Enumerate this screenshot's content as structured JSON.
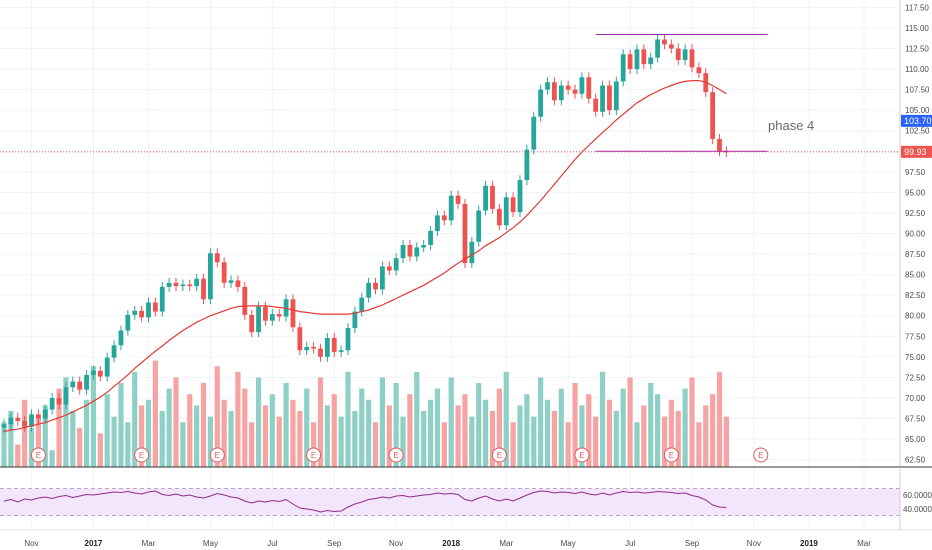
{
  "chart_data": {
    "type": "candlestick",
    "price_axis": {
      "min": 61.6,
      "max": 118.4,
      "ticks": [
        "117.50",
        "115.00",
        "112.50",
        "110.00",
        "107.50",
        "105.00",
        "102.50",
        "100.00",
        "97.50",
        "95.00",
        "92.50",
        "90.00",
        "87.50",
        "85.00",
        "82.50",
        "80.00",
        "77.50",
        "75.00",
        "72.50",
        "70.00",
        "67.50",
        "65.00",
        "62.50"
      ]
    },
    "time_axis": {
      "labels": [
        {
          "text": "Nov",
          "week": 4,
          "bold": false
        },
        {
          "text": "2017",
          "week": 13,
          "bold": true
        },
        {
          "text": "Mar",
          "week": 21,
          "bold": false
        },
        {
          "text": "May",
          "week": 30,
          "bold": false
        },
        {
          "text": "Jul",
          "week": 39,
          "bold": false
        },
        {
          "text": "Sep",
          "week": 48,
          "bold": false
        },
        {
          "text": "Nov",
          "week": 57,
          "bold": false
        },
        {
          "text": "2018",
          "week": 65,
          "bold": true
        },
        {
          "text": "Mar",
          "week": 73,
          "bold": false
        },
        {
          "text": "May",
          "week": 82,
          "bold": false
        },
        {
          "text": "Jul",
          "week": 91,
          "bold": false
        },
        {
          "text": "Sep",
          "week": 100,
          "bold": false
        },
        {
          "text": "Nov",
          "week": 109,
          "bold": false
        },
        {
          "text": "2019",
          "week": 117,
          "bold": true
        },
        {
          "text": "Mar",
          "week": 125,
          "bold": false
        }
      ]
    },
    "candles_close": [
      66.8,
      67.6,
      67.2,
      66.5,
      68.0,
      67.5,
      68.6,
      70.0,
      69.2,
      71.3,
      72.0,
      71.0,
      72.8,
      73.3,
      72.6,
      74.9,
      76.4,
      78.2,
      80.1,
      80.6,
      79.8,
      81.6,
      80.5,
      83.5,
      84.0,
      83.6,
      83.8,
      83.6,
      84.5,
      82.0,
      87.6,
      86.5,
      84.0,
      84.3,
      83.5,
      80.1,
      78.0,
      81.1,
      79.4,
      80.2,
      79.9,
      82.0,
      78.6,
      75.8,
      76.2,
      76.0,
      75.0,
      77.3,
      75.6,
      75.8,
      78.5,
      80.5,
      82.2,
      84.0,
      83.2,
      86.0,
      85.5,
      87.0,
      88.6,
      87.2,
      88.3,
      88.6,
      90.3,
      92.2,
      91.6,
      94.6,
      93.6,
      86.4,
      89.0,
      92.8,
      95.8,
      93.0,
      91.0,
      94.4,
      92.6,
      96.5,
      100.2,
      104.2,
      107.5,
      108.4,
      106.2,
      108.0,
      107.5,
      107.0,
      109.0,
      106.4,
      104.8,
      108.0,
      105.0,
      108.5,
      111.8,
      110.0,
      112.4,
      110.6,
      111.4,
      113.6,
      113.0,
      112.5,
      111.1,
      112.4,
      110.2,
      109.5,
      107.2,
      101.5,
      100.0,
      99.9
    ],
    "candles_open": [
      66.4,
      66.8,
      67.6,
      67.2,
      66.5,
      68.0,
      67.5,
      68.6,
      70.0,
      69.2,
      71.3,
      72.0,
      71.0,
      72.8,
      73.3,
      72.6,
      74.9,
      76.4,
      78.2,
      80.1,
      80.6,
      79.8,
      81.6,
      80.5,
      83.5,
      84.0,
      83.6,
      83.8,
      83.6,
      84.5,
      82.0,
      87.6,
      86.5,
      84.0,
      84.3,
      83.5,
      80.1,
      78.0,
      81.1,
      79.4,
      80.2,
      79.9,
      82.0,
      78.6,
      75.8,
      76.2,
      76.0,
      75.0,
      77.3,
      75.6,
      75.8,
      78.5,
      80.5,
      82.2,
      84.0,
      83.2,
      86.0,
      85.5,
      87.0,
      88.6,
      87.2,
      88.3,
      88.6,
      90.3,
      92.2,
      91.6,
      94.6,
      93.6,
      86.4,
      89.0,
      92.8,
      95.8,
      93.0,
      91.0,
      94.4,
      92.6,
      96.5,
      100.2,
      104.2,
      107.5,
      108.4,
      106.2,
      108.0,
      107.5,
      107.0,
      109.0,
      106.4,
      104.8,
      108.0,
      105.0,
      108.5,
      111.8,
      110.0,
      112.4,
      110.6,
      111.4,
      113.6,
      113.0,
      112.5,
      111.1,
      112.4,
      110.2,
      109.5,
      107.2,
      101.5,
      100.0
    ],
    "ma_series": {
      "name": "MA",
      "values": [
        65.9,
        66.1,
        66.2,
        66.4,
        66.6,
        66.8,
        67.0,
        67.3,
        67.6,
        67.9,
        68.3,
        68.7,
        69.1,
        69.6,
        70.1,
        70.7,
        71.4,
        72.1,
        72.8,
        73.6,
        74.3,
        75.0,
        75.7,
        76.3,
        77.0,
        77.6,
        78.2,
        78.7,
        79.2,
        79.6,
        80.0,
        80.3,
        80.6,
        80.9,
        81.1,
        81.2,
        81.2,
        81.2,
        81.2,
        81.1,
        81.0,
        80.9,
        80.7,
        80.5,
        80.4,
        80.3,
        80.2,
        80.2,
        80.2,
        80.2,
        80.2,
        80.3,
        80.5,
        80.7,
        81.0,
        81.3,
        81.7,
        82.1,
        82.5,
        82.9,
        83.3,
        83.7,
        84.2,
        84.7,
        85.2,
        85.8,
        86.4,
        86.9,
        87.4,
        87.9,
        88.5,
        89.0,
        89.5,
        90.1,
        90.7,
        91.4,
        92.2,
        93.1,
        94.0,
        95.0,
        96.0,
        97.0,
        98.0,
        99.0,
        99.9,
        100.7,
        101.5,
        102.3,
        103.0,
        103.8,
        104.5,
        105.2,
        105.9,
        106.4,
        106.9,
        107.3,
        107.7,
        108.0,
        108.3,
        108.5,
        108.6,
        108.6,
        108.4,
        108.0,
        107.5,
        107.0
      ]
    },
    "volume": [
      70,
      72,
      66,
      74,
      69,
      71,
      73,
      65,
      76,
      78,
      72,
      69,
      74,
      80,
      68,
      75,
      71,
      77,
      70,
      79,
      73,
      74,
      81,
      72,
      76,
      78,
      70,
      75,
      73,
      77,
      71,
      80,
      74,
      72,
      79,
      76,
      70,
      78,
      73,
      75,
      71,
      77,
      74,
      72,
      76,
      70,
      78,
      73,
      75,
      71,
      79,
      72,
      76,
      74,
      70,
      78,
      73,
      77,
      71,
      75,
      79,
      72,
      74,
      76,
      70,
      78,
      73,
      75,
      71,
      77,
      74,
      72,
      76,
      79,
      70,
      73,
      75,
      71,
      78,
      74,
      72,
      76,
      70,
      77,
      73,
      75,
      71,
      79,
      74,
      72,
      76,
      78,
      70,
      73,
      77,
      75,
      71,
      74,
      72,
      76,
      78,
      70,
      73,
      75,
      79,
      71
    ],
    "reference_lines": [
      {
        "value": 114.2,
        "color": "#9c27b0",
        "from_week": 86,
        "to_week": 111
      },
      {
        "value": 100.0,
        "color": "#9c27b0",
        "from_week": 86,
        "to_week": 111
      },
      {
        "value": 99.93,
        "color": "#ef5350",
        "style": "dotted",
        "full_width": true
      }
    ],
    "price_badges": [
      {
        "text": "103.70",
        "value": 103.7,
        "color": "#2962ff"
      },
      {
        "text": "99.93",
        "value": 99.93,
        "color": "#ef5350"
      }
    ],
    "earnings_markers": {
      "label": "E",
      "weeks": [
        5,
        20,
        31,
        45,
        57,
        72,
        84,
        97,
        110
      ]
    },
    "annotation": {
      "text": "phase 4"
    },
    "rsi": {
      "ticks": [
        "60.0000",
        "40.0000"
      ],
      "upper_band": 70,
      "lower_band": 30,
      "values": [
        52,
        55,
        50,
        56,
        54,
        58,
        60,
        57,
        61,
        63,
        59,
        62,
        65,
        64,
        66,
        68,
        70,
        69,
        71,
        68,
        66,
        70,
        72,
        65,
        63,
        66,
        62,
        64,
        60,
        58,
        62,
        67,
        64,
        60,
        58,
        52,
        48,
        52,
        50,
        53,
        51,
        55,
        46,
        38,
        36,
        34,
        30,
        33,
        31,
        32,
        40,
        46,
        50,
        55,
        57,
        60,
        58,
        62,
        63,
        60,
        62,
        64,
        65,
        68,
        66,
        67,
        65,
        55,
        52,
        58,
        62,
        56,
        52,
        56,
        52,
        58,
        64,
        69,
        72,
        71,
        68,
        70,
        69,
        67,
        70,
        66,
        64,
        68,
        64,
        68,
        71,
        69,
        70,
        68,
        69,
        71,
        70,
        69,
        67,
        68,
        63,
        60,
        54,
        44,
        40,
        39
      ]
    },
    "colors": {
      "up": "#26a69a",
      "down": "#ef5350",
      "ma": "#e53935",
      "vol_up": "#8fd0c6",
      "vol_down": "#f5a3a3",
      "rsi_line": "#8e2c8e",
      "rsi_band": "#f3e5fb"
    }
  }
}
